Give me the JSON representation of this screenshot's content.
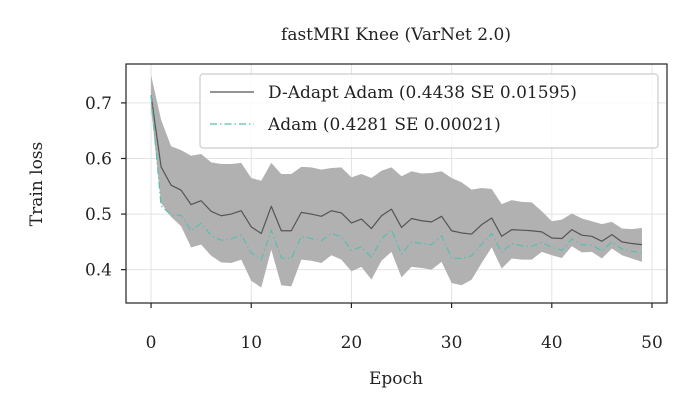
{
  "chart_data": {
    "type": "line",
    "title": "fastMRI Knee (VarNet 2.0)",
    "xlabel": "Epoch",
    "ylabel": "Train loss",
    "xlim": [
      -2.5,
      51.5
    ],
    "ylim": [
      0.34,
      0.77
    ],
    "xticks": [
      0,
      10,
      20,
      30,
      40,
      50
    ],
    "yticks": [
      0.4,
      0.5,
      0.6,
      0.7
    ],
    "grid": true,
    "legend_position": "top-right",
    "x": [
      0,
      1,
      2,
      3,
      4,
      5,
      6,
      7,
      8,
      9,
      10,
      11,
      12,
      13,
      14,
      15,
      16,
      17,
      18,
      19,
      20,
      21,
      22,
      23,
      24,
      25,
      26,
      27,
      28,
      29,
      30,
      31,
      32,
      33,
      34,
      35,
      36,
      37,
      38,
      39,
      40,
      41,
      42,
      43,
      44,
      45,
      46,
      47,
      48,
      49
    ],
    "series": [
      {
        "name": "D-Adapt Adam (0.4438 SE 0.01595)",
        "color": "#555555",
        "style": "solid",
        "values": [
          0.714,
          0.585,
          0.552,
          0.543,
          0.517,
          0.524,
          0.505,
          0.497,
          0.5,
          0.506,
          0.477,
          0.465,
          0.514,
          0.47,
          0.47,
          0.503,
          0.5,
          0.496,
          0.506,
          0.502,
          0.484,
          0.491,
          0.474,
          0.497,
          0.509,
          0.476,
          0.492,
          0.488,
          0.486,
          0.496,
          0.47,
          0.466,
          0.464,
          0.481,
          0.493,
          0.46,
          0.472,
          0.471,
          0.47,
          0.468,
          0.457,
          0.456,
          0.472,
          0.462,
          0.46,
          0.451,
          0.463,
          0.45,
          0.447,
          0.445
        ],
        "band_upper": [
          0.75,
          0.67,
          0.622,
          0.615,
          0.605,
          0.608,
          0.593,
          0.59,
          0.59,
          0.592,
          0.565,
          0.56,
          0.592,
          0.572,
          0.572,
          0.585,
          0.584,
          0.58,
          0.583,
          0.584,
          0.566,
          0.572,
          0.565,
          0.578,
          0.584,
          0.568,
          0.577,
          0.573,
          0.574,
          0.577,
          0.565,
          0.557,
          0.544,
          0.547,
          0.545,
          0.518,
          0.525,
          0.522,
          0.521,
          0.505,
          0.487,
          0.49,
          0.501,
          0.492,
          0.487,
          0.482,
          0.486,
          0.474,
          0.473,
          0.475
        ],
        "band_lower": [
          0.69,
          0.52,
          0.495,
          0.478,
          0.44,
          0.445,
          0.425,
          0.413,
          0.412,
          0.418,
          0.38,
          0.368,
          0.436,
          0.372,
          0.37,
          0.418,
          0.416,
          0.412,
          0.426,
          0.418,
          0.397,
          0.405,
          0.382,
          0.416,
          0.432,
          0.386,
          0.405,
          0.403,
          0.4,
          0.414,
          0.376,
          0.372,
          0.382,
          0.412,
          0.44,
          0.402,
          0.42,
          0.418,
          0.418,
          0.432,
          0.426,
          0.421,
          0.442,
          0.431,
          0.432,
          0.42,
          0.438,
          0.426,
          0.42,
          0.414
        ]
      },
      {
        "name": "Adam (0.4281 SE 0.00021)",
        "color": "#5bbdb0",
        "style": "dashdot",
        "values": [
          0.714,
          0.515,
          0.498,
          0.498,
          0.47,
          0.484,
          0.461,
          0.453,
          0.455,
          0.463,
          0.43,
          0.418,
          0.471,
          0.421,
          0.42,
          0.46,
          0.456,
          0.452,
          0.465,
          0.459,
          0.435,
          0.441,
          0.422,
          0.455,
          0.472,
          0.428,
          0.45,
          0.447,
          0.445,
          0.461,
          0.421,
          0.42,
          0.425,
          0.446,
          0.465,
          0.431,
          0.447,
          0.443,
          0.442,
          0.449,
          0.44,
          0.435,
          0.455,
          0.445,
          0.444,
          0.434,
          0.45,
          0.437,
          0.433,
          0.43
        ]
      }
    ]
  }
}
